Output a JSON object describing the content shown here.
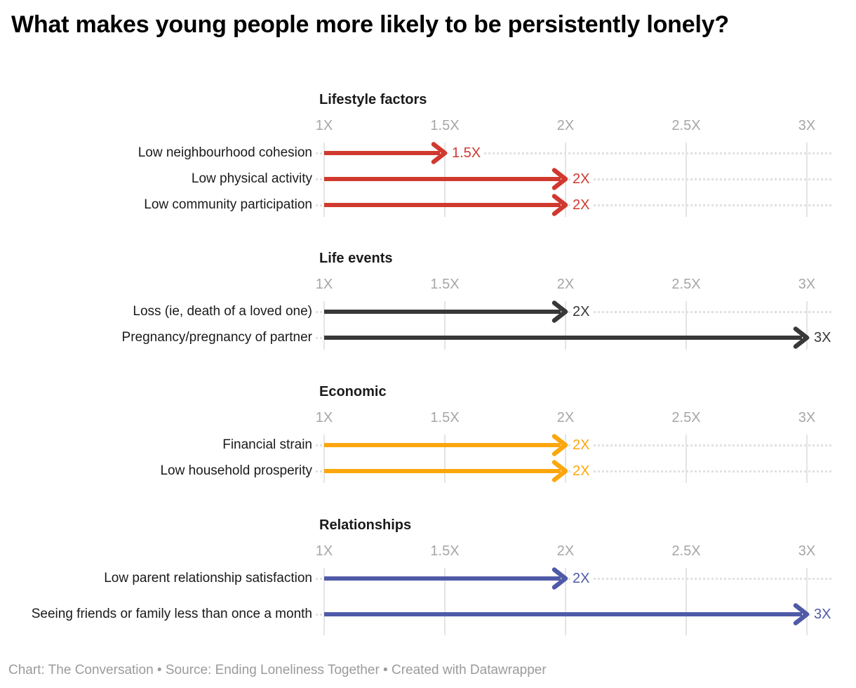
{
  "title": "What makes young people more likely to be persistently lonely?",
  "footer": "Chart: The Conversation • Source: Ending Loneliness Together  • Created with Datawrapper",
  "chart_data": {
    "type": "bar",
    "subtype": "arrow-chart",
    "xlabel": "",
    "ylabel": "",
    "xlim": [
      1,
      3
    ],
    "grid": "vertical",
    "axis_ticks": [
      {
        "value": 1,
        "label": "1X"
      },
      {
        "value": 1.5,
        "label": "1.5X"
      },
      {
        "value": 2,
        "label": "2X"
      },
      {
        "value": 2.5,
        "label": "2.5X"
      },
      {
        "value": 3,
        "label": "3X"
      }
    ],
    "groups": [
      {
        "name": "Lifestyle factors",
        "color": "#d0392e",
        "rows": [
          {
            "label": "Low neighbourhood cohesion",
            "value": 1.5,
            "value_label": "1.5X"
          },
          {
            "label": "Low physical activity",
            "value": 2,
            "value_label": "2X"
          },
          {
            "label": "Low community participation",
            "value": 2,
            "value_label": "2X"
          }
        ]
      },
      {
        "name": "Life events",
        "color": "#383838",
        "rows": [
          {
            "label": "Loss (ie, death of a loved one)",
            "value": 2,
            "value_label": "2X"
          },
          {
            "label": "Pregnancy/pregnancy of partner",
            "value": 3,
            "value_label": "3X"
          }
        ]
      },
      {
        "name": "Economic",
        "color": "#fca60d",
        "rows": [
          {
            "label": "Financial strain",
            "value": 2,
            "value_label": "2X"
          },
          {
            "label": "Low household prosperity",
            "value": 2,
            "value_label": "2X"
          }
        ]
      },
      {
        "name": "Relationships",
        "color": "#4f5aa7",
        "rows": [
          {
            "label": "Low parent relationship satisfaction",
            "value": 2,
            "value_label": "2X"
          },
          {
            "label": "Seeing friends or family less than once a month",
            "value": 3,
            "value_label": "3X"
          }
        ]
      }
    ]
  }
}
